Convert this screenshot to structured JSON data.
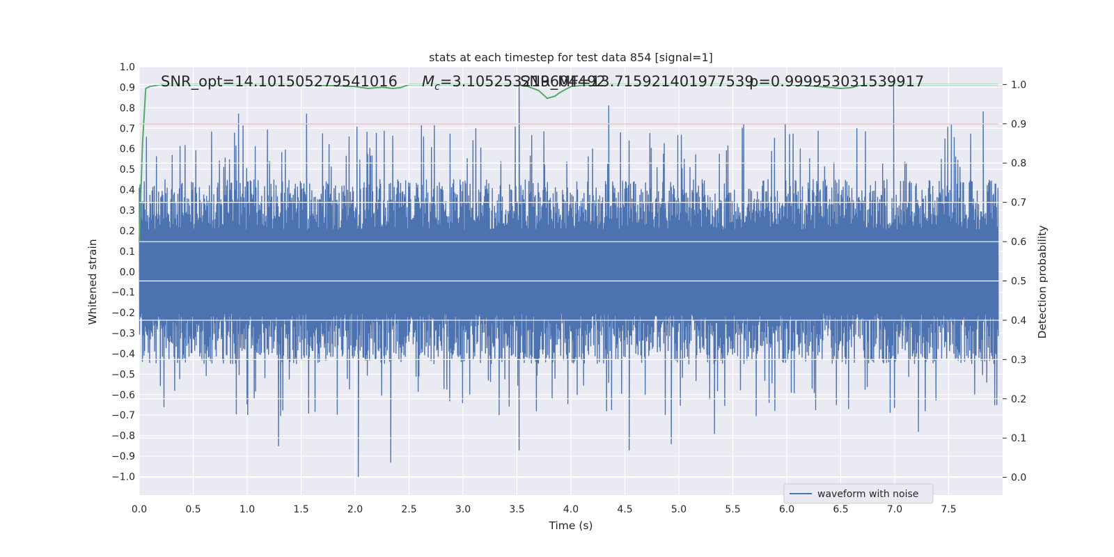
{
  "chart_data": {
    "type": "line",
    "title": "stats at each timestep for test data 854 [signal=1]",
    "xlabel": "Time (s)",
    "ylabel": "Whitened strain",
    "ylabel_right": "Detection probability",
    "xlim": [
      0.0,
      8.0
    ],
    "ylim": [
      -1.09,
      1.0
    ],
    "ylim_right": [
      -0.045,
      1.045
    ],
    "x_ticks": [
      "0.0",
      "0.5",
      "1.0",
      "1.5",
      "2.0",
      "2.5",
      "3.0",
      "3.5",
      "4.0",
      "4.5",
      "5.0",
      "5.5",
      "6.0",
      "6.5",
      "7.0",
      "7.5"
    ],
    "y_ticks": [
      "1.0",
      "0.9",
      "0.8",
      "0.7",
      "0.6",
      "0.5",
      "0.4",
      "0.3",
      "0.2",
      "0.1",
      "0.0",
      "−0.1",
      "−0.2",
      "−0.3",
      "−0.4",
      "−0.5",
      "−0.6",
      "−0.7",
      "−0.8",
      "−0.9",
      "−1.0"
    ],
    "y_ticks_right": [
      "1.0",
      "0.9",
      "0.8",
      "0.7",
      "0.6",
      "0.5",
      "0.4",
      "0.3",
      "0.2",
      "0.1",
      "0.0"
    ],
    "grid": true,
    "legend_placement": "lower-right",
    "annotations": [
      "SNR_opt=14.101505279541016",
      "=3.105253219604492",
      "SNR_MF=13.715921401977539",
      "p=0.999953031539917"
    ],
    "annotation_mc_symbol": "M",
    "annotation_mc_subscript": "c",
    "series": [
      {
        "name": "waveform with noise",
        "color": "#4c72b0",
        "axis": "left",
        "envelope_typical_range": [
          -0.45,
          0.45
        ],
        "peaks": [
          {
            "x": 0.92,
            "y": 0.77
          },
          {
            "x": 1.55,
            "y": 0.77
          },
          {
            "x": 3.52,
            "y": 0.93
          },
          {
            "x": 4.35,
            "y": 0.81
          },
          {
            "x": 6.99,
            "y": 0.93
          },
          {
            "x": 7.82,
            "y": 0.78
          },
          {
            "x": 2.03,
            "y": -1.0
          },
          {
            "x": 2.33,
            "y": -0.93
          },
          {
            "x": 1.29,
            "y": -0.85
          },
          {
            "x": 3.52,
            "y": -0.87
          },
          {
            "x": 4.54,
            "y": -0.87
          },
          {
            "x": 5.33,
            "y": -0.79
          },
          {
            "x": 4.93,
            "y": -0.84
          },
          {
            "x": 7.22,
            "y": -0.78
          }
        ]
      },
      {
        "name": "",
        "color": "#55a868",
        "axis": "right",
        "x": [
          0.0,
          0.03,
          0.06,
          0.1,
          0.2,
          0.5,
          1.0,
          1.5,
          2.0,
          2.12,
          2.25,
          2.35,
          2.42,
          2.5,
          2.7,
          3.0,
          3.3,
          3.5,
          3.6,
          3.7,
          3.78,
          3.85,
          3.9,
          4.0,
          4.2,
          4.5,
          5.0,
          5.5,
          6.0,
          6.3,
          6.5,
          6.6,
          6.7,
          7.0,
          7.5,
          7.96
        ],
        "values": [
          0.6,
          0.85,
          0.99,
          0.995,
          1.0,
          1.0,
          1.0,
          1.0,
          0.995,
          0.99,
          0.993,
          0.99,
          0.992,
          1.0,
          1.0,
          1.0,
          1.0,
          1.0,
          0.995,
          0.985,
          0.965,
          0.97,
          0.98,
          0.995,
          1.0,
          1.0,
          1.0,
          1.0,
          1.0,
          0.995,
          0.99,
          0.992,
          1.0,
          1.0,
          1.0,
          1.0
        ]
      },
      {
        "name": "",
        "color": "#c44e52",
        "axis": "right",
        "threshold": 0.9
      }
    ]
  }
}
